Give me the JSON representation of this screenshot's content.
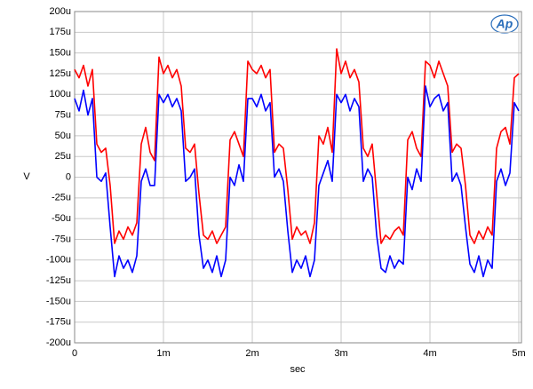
{
  "chart_data": {
    "type": "line",
    "logo": "Ap",
    "xlabel": "sec",
    "ylabel": "V",
    "xlim": [
      0,
      5.03
    ],
    "ylim": [
      -200,
      200
    ],
    "xticks": [
      0,
      {
        "value": 1,
        "label": "1m"
      },
      {
        "value": 2,
        "label": "2m"
      },
      {
        "value": 3,
        "label": "3m"
      },
      {
        "value": 4,
        "label": "4m"
      },
      {
        "value": 5,
        "label": "5m"
      }
    ],
    "yticks": [
      {
        "value": 200,
        "label": "200u"
      },
      {
        "value": 175,
        "label": "175u"
      },
      {
        "value": 150,
        "label": "150u"
      },
      {
        "value": 125,
        "label": "125u"
      },
      {
        "value": 100,
        "label": "100u"
      },
      {
        "value": 75,
        "label": "75u"
      },
      {
        "value": 50,
        "label": "50u"
      },
      {
        "value": 25,
        "label": "25u"
      },
      0,
      {
        "value": -25,
        "label": "-25u"
      },
      {
        "value": -50,
        "label": "-50u"
      },
      {
        "value": -75,
        "label": "-75u"
      },
      {
        "value": -100,
        "label": "-100u"
      },
      {
        "value": -125,
        "label": "-125u"
      },
      {
        "value": -150,
        "label": "-150u"
      },
      {
        "value": -175,
        "label": "-175u"
      },
      {
        "value": -200,
        "label": "-200u"
      }
    ],
    "grid": true,
    "x": [
      0,
      0.05,
      0.1,
      0.15,
      0.2,
      0.25,
      0.3,
      0.35,
      0.4,
      0.45,
      0.5,
      0.55,
      0.6,
      0.65,
      0.7,
      0.75,
      0.8,
      0.85,
      0.9,
      0.95,
      1,
      1.05,
      1.1,
      1.15,
      1.2,
      1.25,
      1.3,
      1.35,
      1.4,
      1.45,
      1.5,
      1.55,
      1.6,
      1.65,
      1.7,
      1.75,
      1.8,
      1.85,
      1.9,
      1.95,
      2,
      2.05,
      2.1,
      2.15,
      2.2,
      2.25,
      2.3,
      2.35,
      2.4,
      2.45,
      2.5,
      2.55,
      2.6,
      2.65,
      2.7,
      2.75,
      2.8,
      2.85,
      2.9,
      2.95,
      3,
      3.05,
      3.1,
      3.15,
      3.2,
      3.25,
      3.3,
      3.35,
      3.4,
      3.45,
      3.5,
      3.55,
      3.6,
      3.65,
      3.7,
      3.75,
      3.8,
      3.85,
      3.9,
      3.95,
      4,
      4.05,
      4.1,
      4.15,
      4.2,
      4.25,
      4.3,
      4.35,
      4.4,
      4.45,
      4.5,
      4.55,
      4.6,
      4.65,
      4.7,
      4.75,
      4.8,
      4.85,
      4.9,
      4.95,
      5
    ],
    "series": [
      {
        "color": "#ff0000",
        "values": [
          130,
          120,
          135,
          110,
          130,
          40,
          30,
          35,
          -10,
          -80,
          -65,
          -75,
          -60,
          -70,
          -55,
          40,
          60,
          30,
          20,
          145,
          125,
          135,
          120,
          130,
          110,
          35,
          30,
          40,
          -20,
          -70,
          -75,
          -65,
          -80,
          -70,
          -60,
          45,
          55,
          40,
          25,
          140,
          130,
          125,
          135,
          120,
          130,
          30,
          40,
          35,
          -15,
          -75,
          -60,
          -70,
          -65,
          -80,
          -55,
          50,
          40,
          60,
          30,
          155,
          125,
          140,
          120,
          130,
          115,
          35,
          25,
          40,
          -20,
          -80,
          -70,
          -75,
          -65,
          -60,
          -70,
          45,
          55,
          35,
          25,
          140,
          135,
          120,
          140,
          125,
          110,
          30,
          40,
          35,
          -10,
          -70,
          -80,
          -65,
          -75,
          -60,
          -70,
          35,
          55,
          60,
          40,
          120,
          125
        ]
      },
      {
        "color": "#0000ff",
        "values": [
          95,
          80,
          105,
          75,
          95,
          0,
          -5,
          5,
          -60,
          -120,
          -95,
          -110,
          -100,
          -115,
          -95,
          -5,
          10,
          -10,
          -10,
          100,
          90,
          100,
          85,
          95,
          80,
          -5,
          0,
          10,
          -70,
          -110,
          -100,
          -115,
          -95,
          -120,
          -100,
          0,
          -10,
          15,
          -5,
          95,
          95,
          85,
          100,
          80,
          90,
          0,
          10,
          -5,
          -65,
          -115,
          -100,
          -110,
          -95,
          -120,
          -100,
          -10,
          5,
          20,
          -5,
          100,
          90,
          100,
          80,
          95,
          85,
          -5,
          10,
          0,
          -70,
          -110,
          -115,
          -95,
          -110,
          -100,
          -105,
          0,
          -15,
          10,
          -5,
          110,
          85,
          95,
          100,
          80,
          90,
          -5,
          5,
          -10,
          -60,
          -105,
          -115,
          -95,
          -120,
          -100,
          -110,
          -5,
          10,
          -10,
          5,
          90,
          80
        ]
      }
    ]
  }
}
